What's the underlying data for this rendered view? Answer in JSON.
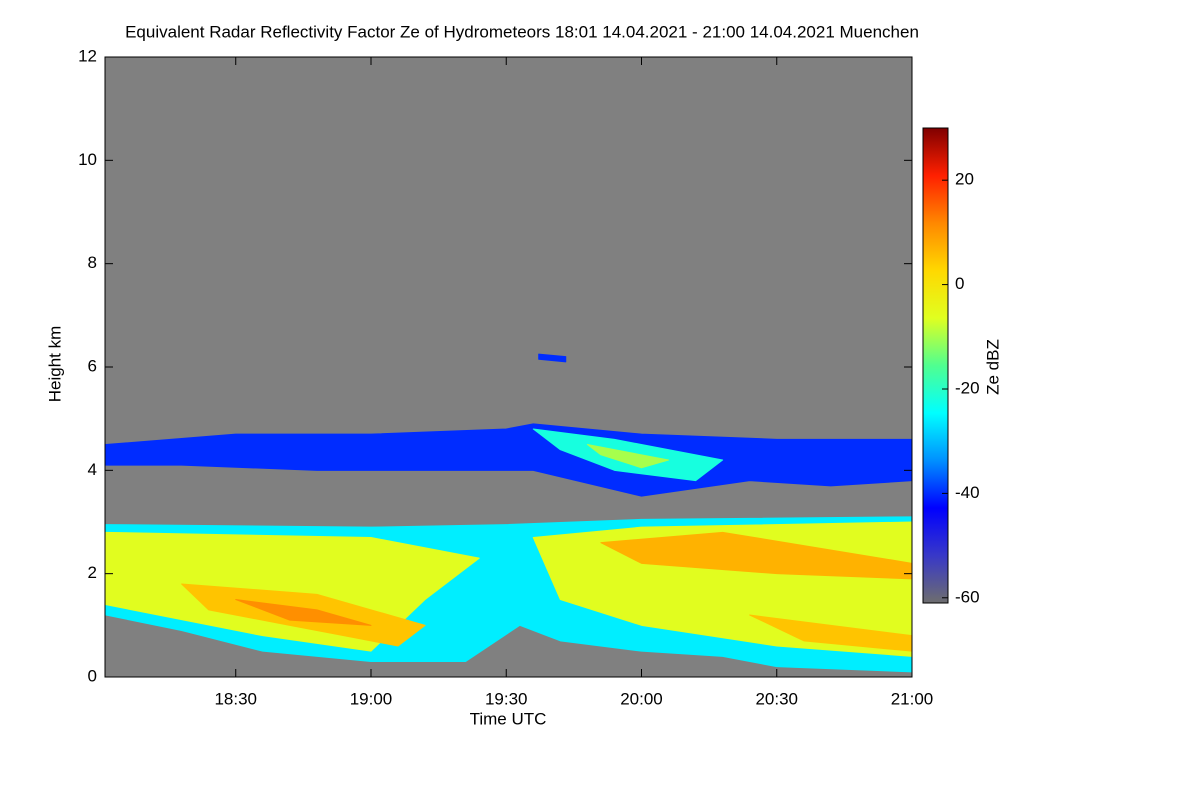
{
  "chart_data": {
    "type": "radar-section",
    "title": "Equivalent Radar Reflectivity Factor Ze of Hydrometeors   18:01 14.04.2021 - 21:00 14.04.2021 Muenchen",
    "xlabel": "Time UTC",
    "ylabel": "Height km",
    "colorbar_label": "Ze dBZ",
    "background": "#808080",
    "xlim": [
      18.0167,
      21
    ],
    "xticks": [
      {
        "value": 18.5,
        "label": "18:30"
      },
      {
        "value": 19,
        "label": "19:00"
      },
      {
        "value": 19.5,
        "label": "19:30"
      },
      {
        "value": 20,
        "label": "20:00"
      },
      {
        "value": 20.5,
        "label": "20:30"
      },
      {
        "value": 21,
        "label": "21:00"
      }
    ],
    "ylim": [
      0,
      12
    ],
    "yticks": [
      0,
      2,
      4,
      6,
      8,
      10,
      12
    ],
    "zlim": [
      -61,
      30
    ],
    "zticks": [
      20,
      0,
      -20,
      -40,
      -60
    ],
    "colormap": [
      "#6e6e6e",
      "#3838c8",
      "#0000ff",
      "#0090ff",
      "#00ffff",
      "#50ff90",
      "#e0ff20",
      "#ffd800",
      "#ff8800",
      "#ff2000",
      "#800000"
    ],
    "layers": [
      {
        "x": [
          18.02,
          18.5,
          19.0,
          19.5,
          19.6,
          20.0,
          20.5,
          21,
          21,
          20.7,
          20.4,
          20.0,
          19.6,
          19.3,
          18.8,
          18.3,
          18.02
        ],
        "y": [
          4.5,
          4.7,
          4.7,
          4.8,
          4.9,
          4.7,
          4.6,
          4.6,
          3.8,
          3.7,
          3.8,
          3.5,
          4.0,
          4.0,
          4.0,
          4.1,
          4.1
        ],
        "ze": -40
      },
      {
        "x": [
          19.6,
          19.9,
          20.3,
          20.2,
          19.9,
          19.7
        ],
        "y": [
          4.8,
          4.6,
          4.2,
          3.8,
          4.0,
          4.4
        ],
        "ze": -22
      },
      {
        "x": [
          19.8,
          20.1,
          20.0,
          19.85
        ],
        "y": [
          4.5,
          4.2,
          4.05,
          4.3
        ],
        "ze": -10
      },
      {
        "x": [
          19.62,
          19.72,
          19.72,
          19.62
        ],
        "y": [
          6.25,
          6.2,
          6.1,
          6.15
        ],
        "ze": -40
      },
      {
        "x": [
          18.02,
          19,
          19.5,
          20,
          21,
          21,
          20.5,
          20.3,
          20,
          19.7,
          19.55,
          19.35,
          19.0,
          18.6,
          18.3,
          18.02
        ],
        "y": [
          2.95,
          2.9,
          2.95,
          3.05,
          3.1,
          0.1,
          0.2,
          0.4,
          0.5,
          0.7,
          1.0,
          0.3,
          0.3,
          0.5,
          0.9,
          1.2
        ],
        "ze": -26
      },
      {
        "x": [
          18.02,
          19.0,
          19.4,
          19.2,
          19.0,
          18.6,
          18.02
        ],
        "y": [
          2.8,
          2.7,
          2.3,
          1.5,
          0.5,
          0.8,
          1.4
        ],
        "ze": -6
      },
      {
        "x": [
          19.6,
          20,
          21,
          21,
          20.5,
          20.0,
          19.7
        ],
        "y": [
          2.7,
          2.9,
          3.0,
          0.4,
          0.6,
          1.0,
          1.5
        ],
        "ze": -6
      },
      {
        "x": [
          18.3,
          18.8,
          19.2,
          19.1,
          18.7,
          18.4
        ],
        "y": [
          1.8,
          1.6,
          1.0,
          0.6,
          1.0,
          1.3
        ],
        "ze": 5
      },
      {
        "x": [
          19.85,
          20.3,
          21,
          21,
          20.5,
          20.0
        ],
        "y": [
          2.6,
          2.8,
          2.2,
          1.9,
          2.0,
          2.2
        ],
        "ze": 7
      },
      {
        "x": [
          20.4,
          21,
          21,
          20.6
        ],
        "y": [
          1.2,
          0.8,
          0.5,
          0.7
        ],
        "ze": 5
      },
      {
        "x": [
          18.5,
          18.8,
          19.0,
          18.7
        ],
        "y": [
          1.5,
          1.3,
          1.0,
          1.1
        ],
        "ze": 11
      }
    ]
  }
}
